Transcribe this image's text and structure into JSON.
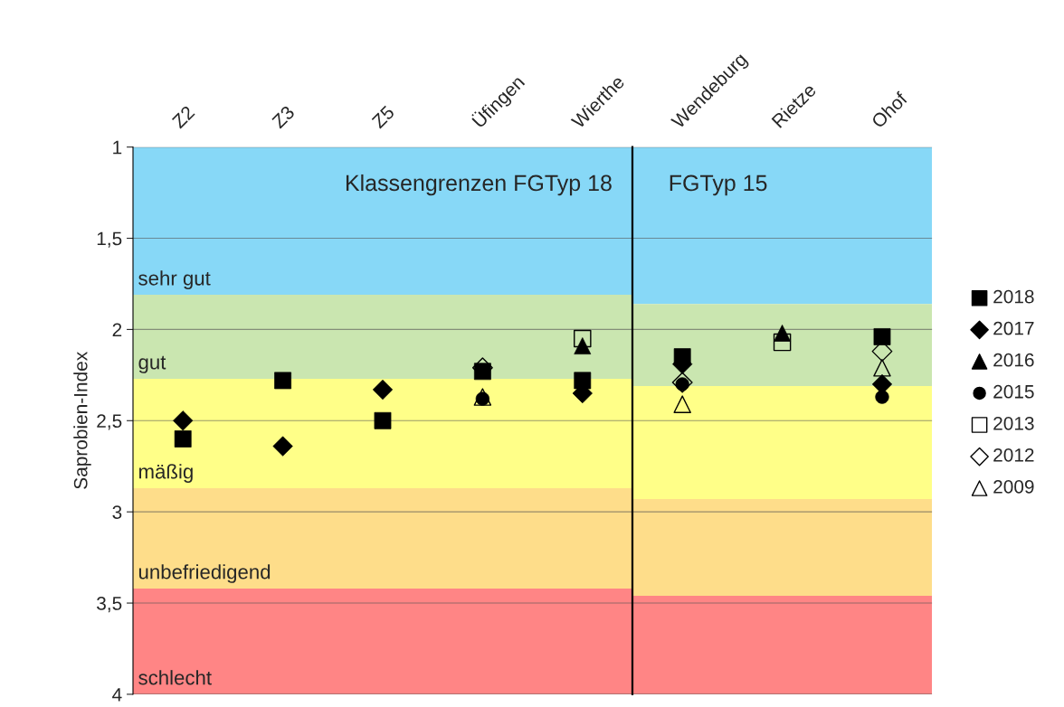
{
  "chart_data": [
    {
      "type": "scatter",
      "ylabel": "Saprobien-Index",
      "categories": [
        "Z2",
        "Z3",
        "Z5",
        "Üfingen",
        "Wierthe"
      ],
      "ylim": [
        4,
        1
      ],
      "yticks": [
        1,
        {
          "value": 1.5,
          "label": "1,5"
        },
        2,
        {
          "value": 2.5,
          "label": "2,5"
        },
        3,
        {
          "value": 3.5,
          "label": "3,5"
        },
        4
      ],
      "grid": "y",
      "legend": "right",
      "tick_labels": "y",
      "annotations": [
        "Klassengrenzen FGTyp 18"
      ],
      "bands": [
        {
          "axis": "y",
          "from": 1,
          "to": 1.81,
          "label": "sehr gut",
          "color": "#87d8f7"
        },
        {
          "axis": "y",
          "from": 1.81,
          "to": 2.27,
          "label": "gut",
          "color": "#cae6b0"
        },
        {
          "axis": "y",
          "from": 2.27,
          "to": 2.87,
          "label": "mäßig",
          "color": "#ffff88"
        },
        {
          "axis": "y",
          "from": 2.87,
          "to": 3.42,
          "label": "unbefriedigend",
          "color": "#fedd8a"
        },
        {
          "axis": "y",
          "from": 3.42,
          "to": 4,
          "label": "schlecht",
          "color": "#ff8585"
        }
      ],
      "series": [
        {
          "name": "2018",
          "color": "#000000",
          "marker": "square",
          "values": [
            2.6,
            2.28,
            2.5,
            2.23,
            2.28
          ]
        },
        {
          "name": "2017",
          "color": "#000000",
          "marker": "diamond",
          "values": [
            2.5,
            2.64,
            2.33,
            null,
            2.35
          ]
        },
        {
          "name": "2016",
          "color": "#000000",
          "marker": "triangle",
          "values": [
            null,
            null,
            null,
            null,
            2.09
          ]
        },
        {
          "name": "2015",
          "color": "#000000",
          "marker": "circle",
          "values": [
            null,
            null,
            null,
            2.38,
            null
          ]
        },
        {
          "name": "2013",
          "color": "#000000",
          "marker": "square-open",
          "values": [
            null,
            null,
            null,
            null,
            2.05
          ]
        },
        {
          "name": "2012",
          "color": "#000000",
          "marker": "diamond-open",
          "values": [
            null,
            null,
            null,
            2.21,
            null
          ]
        },
        {
          "name": "2009",
          "color": "#000000",
          "marker": "triangle-open",
          "values": [
            null,
            null,
            null,
            2.37,
            null
          ]
        }
      ]
    },
    {
      "type": "scatter",
      "categories": [
        "Wendeburg",
        "Rietze",
        "Ohof"
      ],
      "ylim": [
        4,
        1
      ],
      "yticks": [
        {
          "value": 1,
          "label": null
        },
        {
          "value": 1.5,
          "label": null
        },
        {
          "value": 2,
          "label": null
        },
        {
          "value": 2.5,
          "label": null
        },
        {
          "value": 3,
          "label": null
        },
        {
          "value": 3.5,
          "label": null
        },
        {
          "value": 4,
          "label": null
        }
      ],
      "grid": "y",
      "legend": "right",
      "tick_labels": "x",
      "annotations": [
        "FGTyp 15"
      ],
      "bands": [
        {
          "axis": "y",
          "from": 1,
          "to": 1.86,
          "color": "#87d8f7"
        },
        {
          "axis": "y",
          "from": 1.86,
          "to": 2.31,
          "color": "#cae6b0"
        },
        {
          "axis": "y",
          "from": 2.31,
          "to": 2.93,
          "color": "#ffff88"
        },
        {
          "axis": "y",
          "from": 2.93,
          "to": 3.46,
          "color": "#fedd8a"
        },
        {
          "axis": "y",
          "from": 3.46,
          "to": 4,
          "color": "#ff8585"
        }
      ],
      "series": [
        {
          "name": "2018",
          "color": "#000000",
          "marker": "square",
          "values": [
            2.15,
            null,
            2.04
          ]
        },
        {
          "name": "2017",
          "color": "#000000",
          "marker": "diamond",
          "values": [
            2.19,
            null,
            2.3
          ]
        },
        {
          "name": "2016",
          "color": "#000000",
          "marker": "triangle",
          "values": [
            null,
            2.02,
            null
          ]
        },
        {
          "name": "2015",
          "color": "#000000",
          "marker": "circle",
          "values": [
            2.3,
            null,
            2.37
          ]
        },
        {
          "name": "2013",
          "color": "#000000",
          "marker": "square-open",
          "values": [
            null,
            2.07,
            null
          ]
        },
        {
          "name": "2012",
          "color": "#000000",
          "marker": "diamond-open",
          "values": [
            2.29,
            null,
            2.12
          ]
        },
        {
          "name": "2009",
          "color": "#000000",
          "marker": "triangle-open",
          "values": [
            2.41,
            null,
            2.21
          ]
        }
      ]
    }
  ]
}
